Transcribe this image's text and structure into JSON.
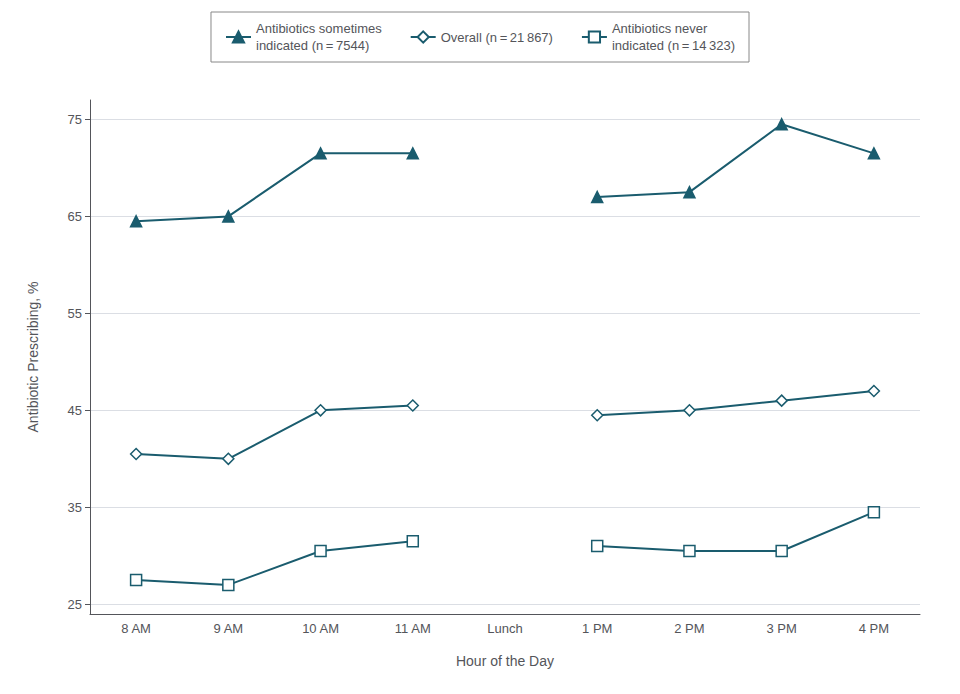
{
  "chart_data": {
    "type": "line",
    "categories": [
      "8 AM",
      "9 AM",
      "10 AM",
      "11 AM",
      "Lunch",
      "1 PM",
      "2 PM",
      "3 PM",
      "4 PM"
    ],
    "series": [
      {
        "name": "Antibiotics sometimes\nindicated (n = 7544)",
        "color": "#1a5c6e",
        "marker": "triangle",
        "values": [
          64.5,
          65.0,
          71.5,
          71.5,
          null,
          67.0,
          67.5,
          74.5,
          71.5
        ]
      },
      {
        "name": "Overall (n = 21 867)",
        "color": "#1a5c6e",
        "marker": "diamond",
        "values": [
          40.5,
          40.0,
          45.0,
          45.5,
          null,
          44.5,
          45.0,
          46.0,
          47.0
        ]
      },
      {
        "name": "Antibiotics never\nindicated (n = 14 323)",
        "color": "#1a5c6e",
        "marker": "square",
        "values": [
          27.5,
          27.0,
          30.5,
          31.5,
          null,
          31.0,
          30.5,
          30.5,
          34.5
        ]
      }
    ],
    "xlabel": "Hour of the Day",
    "ylabel": "Antibiotic Prescribing, %",
    "ylim": [
      24,
      77
    ],
    "yticks": [
      25,
      35,
      45,
      55,
      65,
      75
    ],
    "grid": true,
    "legend": "top"
  }
}
